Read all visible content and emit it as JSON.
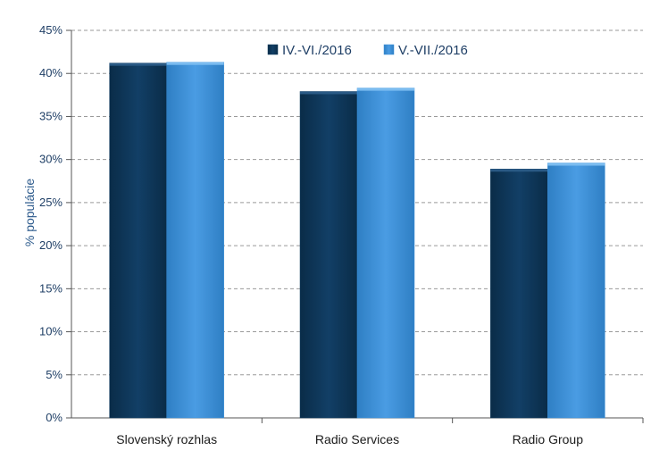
{
  "chart_data": {
    "type": "bar",
    "ylabel": "% populácie",
    "categories": [
      "Slovenský rozhlas",
      "Radio Services",
      "Radio Group"
    ],
    "series": [
      {
        "name": "IV.-VI./2016",
        "values": [
          41.2,
          37.9,
          28.9
        ]
      },
      {
        "name": "V.-VII./2016",
        "values": [
          41.3,
          38.3,
          29.6
        ]
      }
    ],
    "ylim": [
      0,
      45
    ],
    "yticks": [
      "0%",
      "5%",
      "10%",
      "15%",
      "20%",
      "25%",
      "30%",
      "35%",
      "40%",
      "45%"
    ],
    "grid": true,
    "legend_position": "top-right"
  },
  "colors": {
    "series_1": "#0e3a5e",
    "series_2": "#3a8fd8",
    "grid": "#9a9a9a",
    "axis_text": "#1f3f66",
    "ylabel": "#2c5a8c"
  }
}
